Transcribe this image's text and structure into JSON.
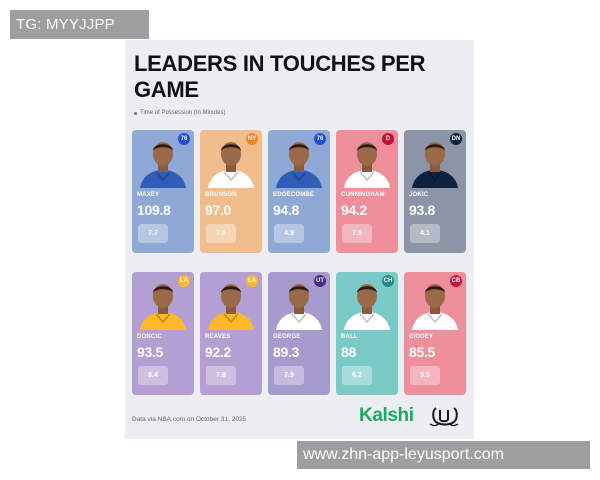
{
  "tg_badge": "TG: MYYJJPP",
  "infographic": {
    "title": "LEADERS IN TOUCHES PER GAME",
    "legend": "Time of Possession (In Minutes)",
    "players": [
      {
        "name": "MAXEY",
        "touches": "109.8",
        "possession": "7.7",
        "team_logo": "76",
        "card_color": "#8fa9d6",
        "logo_color": "#1d4ed8",
        "jersey_color": "#2f5db8"
      },
      {
        "name": "BRUNSON",
        "touches": "97.0",
        "possession": "7.5",
        "team_logo": "NY",
        "card_color": "#f2bd8c",
        "logo_color": "#f58426",
        "jersey_color": "#ffffff"
      },
      {
        "name": "EDGECOMBE",
        "touches": "94.8",
        "possession": "4.9",
        "team_logo": "76",
        "card_color": "#8fa9d6",
        "logo_color": "#1d4ed8",
        "jersey_color": "#2f5db8"
      },
      {
        "name": "CUNNINGHAM",
        "touches": "94.2",
        "possession": "7.5",
        "team_logo": "D",
        "card_color": "#ee8f9b",
        "logo_color": "#c8102e",
        "jersey_color": "#ffffff"
      },
      {
        "name": "JOKIC",
        "touches": "93.8",
        "possession": "4.1",
        "team_logo": "DN",
        "card_color": "#8c95a7",
        "logo_color": "#0e2240",
        "jersey_color": "#0e2240"
      },
      {
        "name": "DONCIC",
        "touches": "93.5",
        "possession": "8.4",
        "team_logo": "LA",
        "card_color": "#b39fd1",
        "logo_color": "#fdb927",
        "jersey_color": "#fdb927"
      },
      {
        "name": "REAVES",
        "touches": "92.2",
        "possession": "7.9",
        "team_logo": "LA",
        "card_color": "#b39fd1",
        "logo_color": "#fdb927",
        "jersey_color": "#fdb927"
      },
      {
        "name": "GEORGE",
        "touches": "89.3",
        "possession": "7.9",
        "team_logo": "UT",
        "card_color": "#a79acc",
        "logo_color": "#4b2a8a",
        "jersey_color": "#ffffff"
      },
      {
        "name": "BALL",
        "touches": "88",
        "possession": "6.2",
        "team_logo": "CH",
        "card_color": "#7ccac8",
        "logo_color": "#1d8c8a",
        "jersey_color": "#ffffff"
      },
      {
        "name": "GIDDEY",
        "touches": "85.5",
        "possession": "5.5",
        "team_logo": "CB",
        "card_color": "#ee8f9b",
        "logo_color": "#ce1141",
        "jersey_color": "#ffffff"
      }
    ],
    "source": "Data via NBA.com on October 31, 2025",
    "brand": "Kalshi"
  },
  "watermark": "www.zhn-app-leyusport.com"
}
